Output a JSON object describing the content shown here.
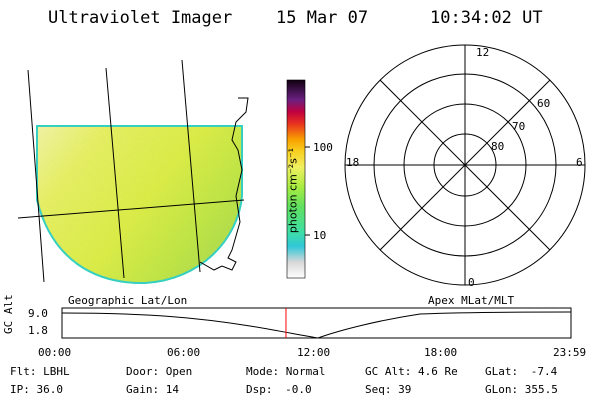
{
  "header": {
    "instrument": "Ultraviolet Imager",
    "date": "15 Mar 07",
    "time": "10:34:02 UT"
  },
  "colorbar": {
    "unit_label": "photon cm⁻²s⁻¹",
    "ticks": [
      "100",
      "10"
    ]
  },
  "polar_plot": {
    "mlt_labels": {
      "top": "12",
      "left": "18",
      "right": "6",
      "bottom": "0"
    },
    "lat_labels": [
      "60",
      "70",
      "80"
    ]
  },
  "timeline": {
    "left_title": "Geographic Lat/Lon",
    "right_title": "Apex MLat/MLT",
    "y_axis_label": "GC Alt",
    "y_ticks": [
      "9.0",
      "1.8"
    ],
    "x_ticks": [
      "00:00",
      "06:00",
      "12:00",
      "18:00",
      "23:59"
    ],
    "marker_time_fraction": 0.44,
    "marker_color": "#ff0000"
  },
  "info": {
    "row1": [
      {
        "label": "Flt:",
        "value": "LBHL"
      },
      {
        "label": "Door:",
        "value": "Open"
      },
      {
        "label": "Mode:",
        "value": "Normal"
      },
      {
        "label": "GC Alt:",
        "value": "4.6 Re"
      },
      {
        "label": "GLat:",
        "value": "-7.4"
      }
    ],
    "row2": [
      {
        "label": "IP:",
        "value": "36.0"
      },
      {
        "label": "Gain:",
        "value": "14"
      },
      {
        "label": "Dsp:",
        "value": "-0.0"
      },
      {
        "label": "Seq:",
        "value": "39"
      },
      {
        "label": "GLon:",
        "value": "355.5"
      }
    ]
  }
}
